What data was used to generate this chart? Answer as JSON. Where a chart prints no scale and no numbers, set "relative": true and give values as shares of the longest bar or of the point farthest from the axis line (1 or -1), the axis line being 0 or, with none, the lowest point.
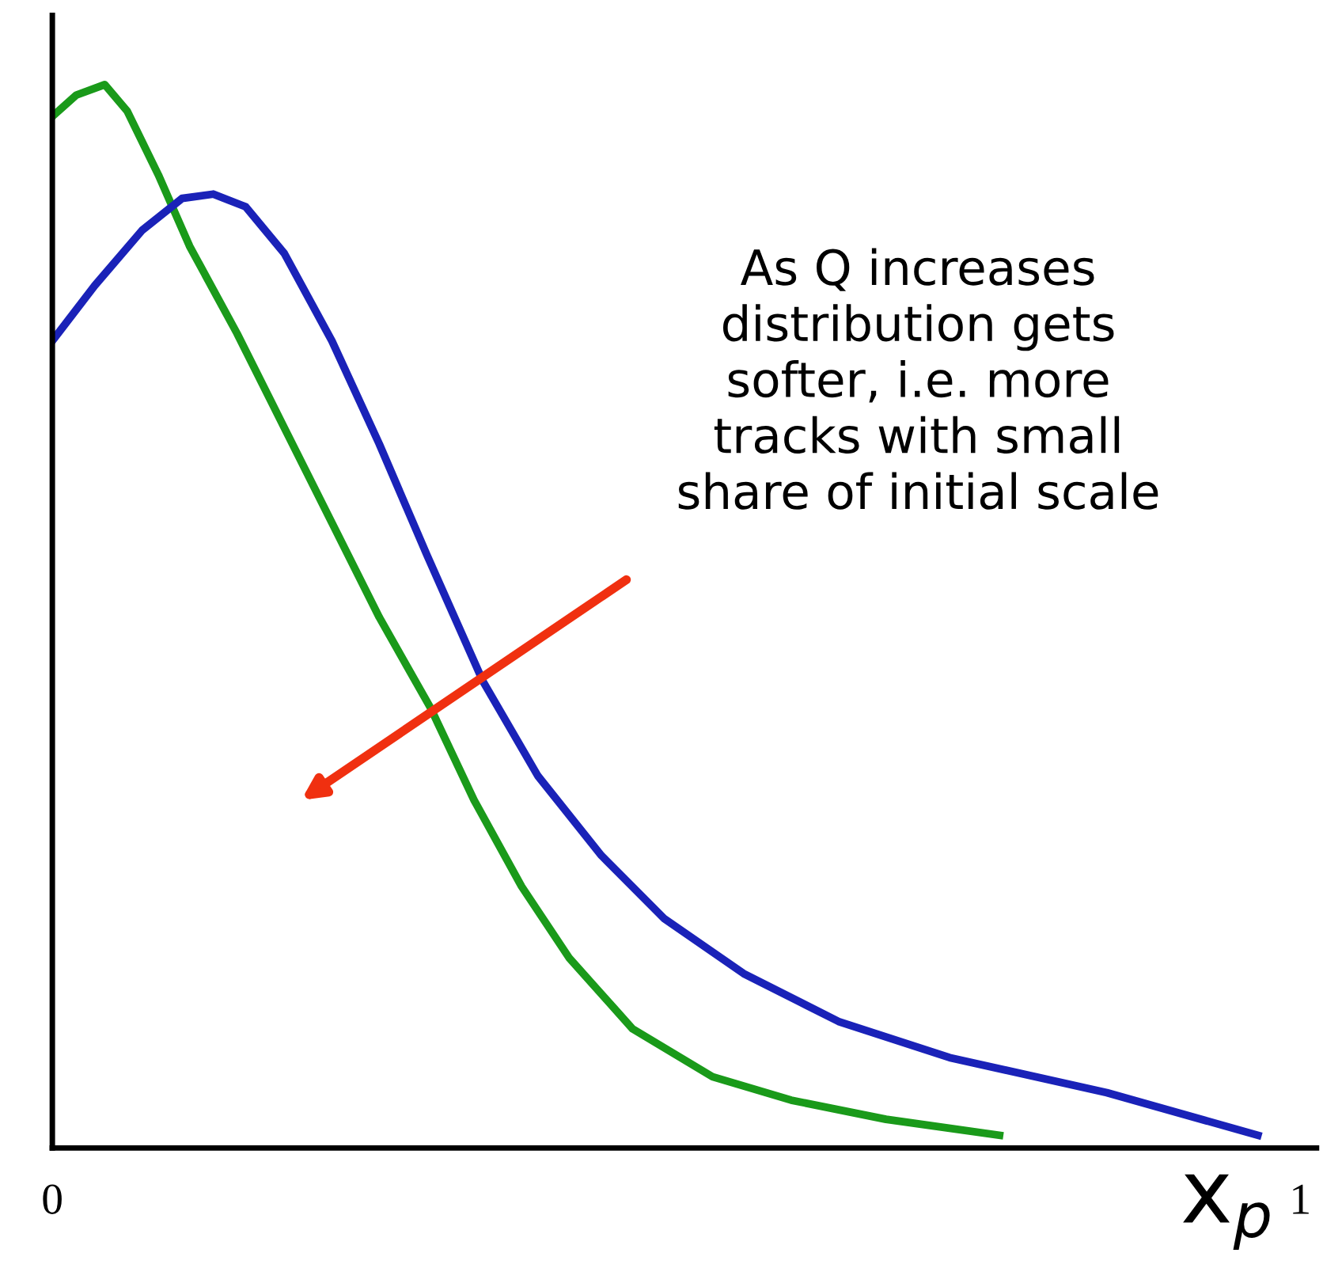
{
  "chart_data": {
    "type": "line",
    "relative": true,
    "xlabel": "x$_{p}$",
    "xlim": [
      0,
      1.013
    ],
    "xticks": [
      0,
      1
    ],
    "grid": false,
    "legend": false,
    "marker": "none",
    "line_style": "solid",
    "annotations": [
      "As Q increases\ndistribution gets\nsofter, i.e. more\ntracks with small\nshare of initial scale"
    ],
    "series": [
      {
        "color": "#1a9a1a",
        "x": [
          0,
          0.019,
          0.042,
          0.06,
          0.085,
          0.11,
          0.148,
          0.186,
          0.224,
          0.262,
          0.303,
          0.338,
          0.376,
          0.414,
          0.465,
          0.529,
          0.592,
          0.668,
          0.759
        ],
        "values": [
          0.97,
          0.99,
          1.0,
          0.975,
          0.915,
          0.848,
          0.766,
          0.677,
          0.588,
          0.499,
          0.414,
          0.327,
          0.246,
          0.179,
          0.112,
          0.067,
          0.045,
          0.027,
          0.012
        ]
      },
      {
        "color": "#1a22b8",
        "x": [
          0,
          0.034,
          0.072,
          0.104,
          0.129,
          0.155,
          0.186,
          0.224,
          0.262,
          0.3,
          0.345,
          0.389,
          0.44,
          0.49,
          0.554,
          0.63,
          0.719,
          0.845,
          0.966
        ],
        "values": [
          0.759,
          0.811,
          0.863,
          0.893,
          0.897,
          0.885,
          0.841,
          0.759,
          0.662,
          0.558,
          0.439,
          0.35,
          0.275,
          0.216,
          0.164,
          0.119,
          0.085,
          0.052,
          0.012
        ]
      }
    ]
  }
}
